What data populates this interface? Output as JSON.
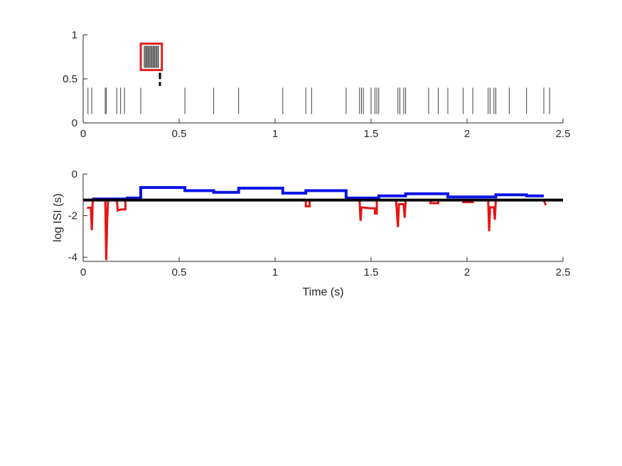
{
  "chart_data": [
    {
      "type": "raster",
      "title": "",
      "xlabel": "",
      "ylabel": "",
      "xlim": [
        0,
        2.5
      ],
      "ylim": [
        0,
        1
      ],
      "xticks": [
        "0",
        "0.5",
        "1",
        "1.5",
        "2",
        "2.5"
      ],
      "yticks": [
        "0",
        "0.5",
        "1"
      ],
      "spike_color": "#404040",
      "spike_y_range": [
        0.1,
        0.4
      ],
      "spike_times": [
        0.025,
        0.045,
        0.115,
        0.12,
        0.175,
        0.195,
        0.215,
        0.3,
        0.53,
        0.68,
        0.81,
        1.04,
        1.16,
        1.19,
        1.37,
        1.44,
        1.45,
        1.46,
        1.5,
        1.52,
        1.53,
        1.54,
        1.64,
        1.65,
        1.67,
        1.68,
        1.8,
        1.85,
        1.9,
        1.98,
        2.03,
        2.11,
        2.12,
        2.14,
        2.15,
        2.22,
        2.31,
        2.4,
        2.43
      ],
      "inset": {
        "frame_color": "#e02020",
        "x_range": [
          0.3,
          0.41
        ],
        "y_range": [
          0.6,
          0.9
        ],
        "spike_count": 12,
        "marker_x": 0.4,
        "marker_y_range": [
          0.42,
          0.57
        ],
        "marker_color": "#000000"
      }
    },
    {
      "type": "line",
      "title": "",
      "xlabel": "Time (s)",
      "ylabel": "log ISI (s)",
      "xlim": [
        0,
        2.5
      ],
      "ylim": [
        -4.2,
        0
      ],
      "xticks": [
        "0",
        "0.5",
        "1",
        "1.5",
        "2",
        "2.5"
      ],
      "yticks": [
        "-4",
        "-2",
        "0"
      ],
      "threshold": {
        "y": -1.25,
        "color": "#000000"
      },
      "series": [
        {
          "color": "#0a14e6",
          "step": true,
          "points": [
            [
              0.05,
              -1.2
            ],
            [
              0.13,
              -1.2
            ],
            [
              0.13,
              -1.2
            ],
            [
              0.23,
              -1.2
            ],
            [
              0.23,
              -1.15
            ],
            [
              0.3,
              -1.15
            ],
            [
              0.3,
              -0.65
            ],
            [
              0.53,
              -0.65
            ],
            [
              0.53,
              -0.8
            ],
            [
              0.68,
              -0.8
            ],
            [
              0.68,
              -0.88
            ],
            [
              0.81,
              -0.88
            ],
            [
              0.81,
              -0.68
            ],
            [
              1.04,
              -0.68
            ],
            [
              1.04,
              -0.92
            ],
            [
              1.16,
              -0.92
            ],
            [
              1.16,
              -0.8
            ],
            [
              1.37,
              -0.8
            ],
            [
              1.37,
              -1.15
            ],
            [
              1.44,
              -1.15
            ],
            [
              1.54,
              -1.15
            ],
            [
              1.54,
              -1.05
            ],
            [
              1.64,
              -1.05
            ],
            [
              1.68,
              -1.05
            ],
            [
              1.68,
              -0.95
            ],
            [
              1.8,
              -0.95
            ],
            [
              1.9,
              -0.95
            ],
            [
              1.9,
              -1.1
            ],
            [
              1.98,
              -1.1
            ],
            [
              2.03,
              -1.1
            ],
            [
              2.03,
              -1.1
            ],
            [
              2.11,
              -1.1
            ],
            [
              2.15,
              -1.1
            ],
            [
              2.15,
              -1.0
            ],
            [
              2.22,
              -1.0
            ],
            [
              2.31,
              -1.0
            ],
            [
              2.31,
              -1.05
            ],
            [
              2.4,
              -1.05
            ]
          ]
        },
        {
          "color": "#e61414",
          "step": true,
          "points": [
            [
              0.02,
              -1.62
            ],
            [
              0.04,
              -1.62
            ],
            [
              0.045,
              -2.7
            ],
            [
              0.05,
              -1.2
            ],
            [
              0.115,
              -1.2
            ],
            [
              0.12,
              -4.15
            ],
            [
              0.125,
              -2.2
            ],
            [
              0.13,
              -1.2
            ],
            [
              0.175,
              -1.2
            ],
            [
              0.18,
              -1.75
            ],
            [
              0.2,
              -1.7
            ],
            [
              0.22,
              -1.7
            ],
            [
              0.22,
              -1.25
            ],
            [
              1.16,
              -1.25
            ],
            [
              1.16,
              -1.55
            ],
            [
              1.18,
              -1.55
            ],
            [
              1.18,
              -1.25
            ],
            [
              1.44,
              -1.25
            ],
            [
              1.445,
              -2.25
            ],
            [
              1.45,
              -1.6
            ],
            [
              1.5,
              -1.65
            ],
            [
              1.52,
              -1.65
            ],
            [
              1.52,
              -1.9
            ],
            [
              1.53,
              -1.9
            ],
            [
              1.53,
              -1.25
            ],
            [
              1.63,
              -1.25
            ],
            [
              1.64,
              -2.55
            ],
            [
              1.645,
              -1.45
            ],
            [
              1.67,
              -1.45
            ],
            [
              1.675,
              -2.1
            ],
            [
              1.68,
              -1.25
            ],
            [
              1.81,
              -1.25
            ],
            [
              1.81,
              -1.4
            ],
            [
              1.85,
              -1.4
            ],
            [
              1.85,
              -1.25
            ],
            [
              1.98,
              -1.25
            ],
            [
              1.98,
              -1.35
            ],
            [
              2.03,
              -1.35
            ],
            [
              2.03,
              -1.25
            ],
            [
              2.11,
              -1.25
            ],
            [
              2.115,
              -2.75
            ],
            [
              2.12,
              -1.6
            ],
            [
              2.14,
              -1.6
            ],
            [
              2.145,
              -2.2
            ],
            [
              2.15,
              -1.25
            ],
            [
              2.4,
              -1.25
            ],
            [
              2.41,
              -1.5
            ]
          ]
        }
      ]
    }
  ]
}
